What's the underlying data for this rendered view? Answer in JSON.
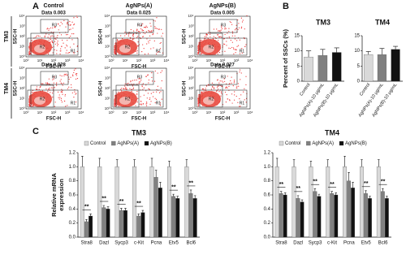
{
  "panel_labels": [
    "A",
    "B",
    "C"
  ],
  "flow": {
    "columns": [
      "Control",
      "AgNPs(A)",
      "AgNPs(B)"
    ],
    "rows": [
      "TM3",
      "TM4"
    ],
    "x_label": "FSC-H",
    "y_label": "SSC-H",
    "gates": [
      "R1",
      "R2",
      "R3"
    ],
    "ticks": [
      "10⁰",
      "10¹",
      "10²",
      "10³",
      "10⁴"
    ],
    "data_labels": [
      [
        "Data 0.003",
        "Data 0.025",
        "Data 0.005"
      ],
      [
        "Data 0.028",
        null,
        "Data 0.027"
      ]
    ]
  },
  "chart_data": [
    {
      "type": "bar",
      "title": "TM3",
      "ylabel": [
        "Percent of SSCs (%)"
      ],
      "categories": [
        "Control",
        "AgNPs(A)-10 μg/mL",
        "AgNPs(B)-10 μg/mL"
      ],
      "values": [
        8,
        8.5,
        9.5
      ],
      "errors": [
        2,
        2,
        1.5
      ],
      "colors": [
        "#d9d9d9",
        "#808080",
        "#111111"
      ],
      "ylim": [
        0,
        15
      ],
      "yticks": [
        0,
        5,
        10,
        15
      ]
    },
    {
      "type": "bar",
      "title": "TM4",
      "categories": [
        "Control",
        "AgNPs(A)-10 μg/mL",
        "AgNPs(B)-10 μg/mL"
      ],
      "values": [
        8.8,
        8.8,
        10.5
      ],
      "errors": [
        1,
        2,
        1
      ],
      "colors": [
        "#d9d9d9",
        "#808080",
        "#111111"
      ],
      "ylim": [
        0,
        15
      ],
      "yticks": [
        0,
        5,
        10,
        15
      ]
    },
    {
      "type": "bar",
      "title": "TM3",
      "ylabel": [
        "Relative mRNA",
        "expression"
      ],
      "categories": [
        "Stra8",
        "Dazl",
        "Sycp3",
        "c-Kit",
        "Pcna",
        "Etv5",
        "Bcl6"
      ],
      "series": [
        {
          "name": "Control",
          "color": "#d9d9d9",
          "values": [
            1,
            1,
            1,
            1,
            1,
            1,
            1
          ],
          "errors": [
            0.15,
            0.12,
            0.1,
            0.1,
            0.12,
            0.08,
            0.1
          ]
        },
        {
          "name": "AgNPs(A)",
          "color": "#808080",
          "values": [
            0.22,
            0.42,
            0.38,
            0.3,
            0.85,
            0.58,
            0.62
          ],
          "errors": [
            0.03,
            0.03,
            0.03,
            0.03,
            0.1,
            0.03,
            0.05
          ]
        },
        {
          "name": "AgNPs(B)",
          "color": "#111111",
          "values": [
            0.3,
            0.4,
            0.38,
            0.35,
            0.7,
            0.55,
            0.55
          ],
          "errors": [
            0.03,
            0.03,
            0.03,
            0.03,
            0.08,
            0.03,
            0.04
          ]
        }
      ],
      "significance": [
        "**",
        "**",
        "**",
        "**",
        null,
        "**",
        "**"
      ],
      "ylim": [
        0,
        1.2
      ],
      "yticks": [
        {
          "value": 0,
          "label": "0.0"
        },
        0.2,
        0.4,
        0.6,
        0.8,
        {
          "value": 1,
          "label": "1.0"
        },
        1.2
      ]
    },
    {
      "type": "bar",
      "title": "TM4",
      "categories": [
        "Stra8",
        "Dazl",
        "Sycp3",
        "c-Kit",
        "Pcna",
        "Etv5",
        "Bcl6"
      ],
      "series": [
        {
          "name": "Control",
          "color": "#d9d9d9",
          "values": [
            1,
            1,
            1,
            1,
            1,
            1,
            1
          ],
          "errors": [
            0.12,
            0.1,
            0.08,
            0.1,
            0.15,
            0.1,
            0.1
          ]
        },
        {
          "name": "AgNPs(A)",
          "color": "#808080",
          "values": [
            0.62,
            0.55,
            0.65,
            0.62,
            0.8,
            0.62,
            0.65
          ],
          "errors": [
            0.03,
            0.04,
            0.04,
            0.03,
            0.12,
            0.04,
            0.04
          ]
        },
        {
          "name": "AgNPs(B)",
          "color": "#111111",
          "values": [
            0.6,
            0.5,
            0.58,
            0.6,
            0.7,
            0.55,
            0.55
          ],
          "errors": [
            0.03,
            0.03,
            0.03,
            0.03,
            0.08,
            0.03,
            0.03
          ]
        }
      ],
      "significance": [
        "**",
        "**",
        "**",
        "**",
        null,
        "**",
        "**"
      ],
      "ylim": [
        0,
        1.2
      ],
      "yticks": [
        {
          "value": 0,
          "label": "0.0"
        },
        0.2,
        0.4,
        0.6,
        0.8,
        {
          "value": 1,
          "label": "1.0"
        },
        1.2
      ]
    }
  ]
}
